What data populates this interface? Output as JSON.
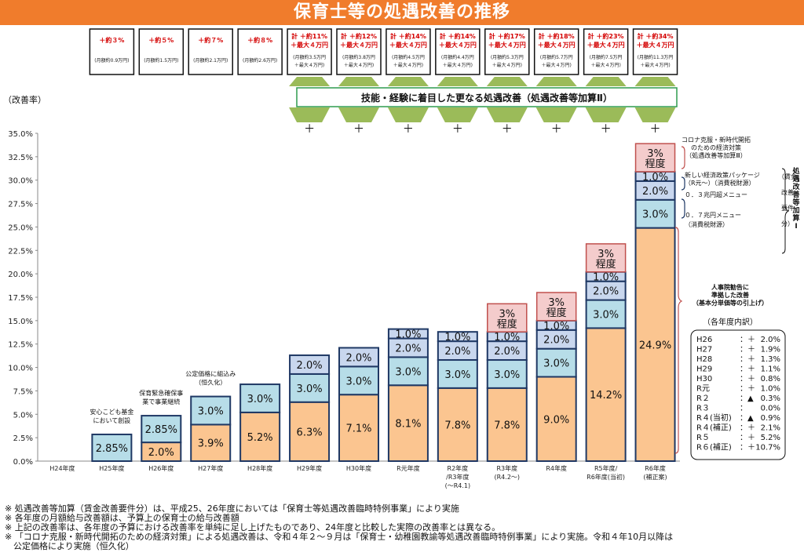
{
  "title": "保育士等の処遇改善の推移",
  "y_axis_title": "（改善率）",
  "top_boxes": [
    {
      "main": "＋約３%",
      "sub": "(月額約0.9万円)"
    },
    {
      "main": "＋約５%",
      "sub": "(月額約1.5万円)"
    },
    {
      "main": "＋約７%",
      "sub": "(月額約2.1万円)"
    },
    {
      "main": "＋約８%",
      "sub": "(月額約2.6万円)"
    },
    {
      "main": "計 ＋約11%",
      "main2": "＋最大４万円",
      "sub": "(月額約3.5万円",
      "sub2": "＋最大４万円)"
    },
    {
      "main": "計 ＋約12%",
      "main2": "＋最大４万円",
      "sub": "(月額約3.8万円",
      "sub2": "＋最大４万円)"
    },
    {
      "main": "計 ＋約14%",
      "main2": "＋最大４万円",
      "sub": "(月額約4.5万円",
      "sub2": "＋最大４万円)"
    },
    {
      "main": "計 ＋約14%",
      "main2": "＋最大４万円",
      "sub": "(月額約4.4万円",
      "sub2": "＋最大４万円)"
    },
    {
      "main": "計 ＋約17%",
      "main2": "＋最大４万円",
      "sub": "(月額約5.3万円",
      "sub2": "＋最大４万円)"
    },
    {
      "main": "計 ＋約18%",
      "main2": "＋最大４万円",
      "sub": "(月額約5.7万円",
      "sub2": "＋最大４万円)"
    },
    {
      "main": "計 ＋約23%",
      "main2": "＋最大４万円",
      "sub": "(月額約7.5万円",
      "sub2": "＋最大４万円)"
    },
    {
      "main": "計 ＋約34%",
      "main2": "＋最大４万円",
      "sub": "(月額約11.3万円",
      "sub2": "＋最大４万円)"
    }
  ],
  "banner": "技能・経験に着目した更なる処遇改善（処遇改善等加算Ⅱ）",
  "plus_sign": "＋",
  "chart_data": {
    "type": "bar",
    "stacked": true,
    "categories": [
      "H24年度",
      "H25年度",
      "H26年度",
      "H27年度",
      "H28年度",
      "H29年度",
      "H30年度",
      "R元年度",
      "R2年度",
      "R3年度",
      "R4年度",
      "R5年度/",
      "R6年度"
    ],
    "category_sublabels": [
      "",
      "",
      "",
      "",
      "",
      "",
      "",
      "",
      "/R3年度",
      "(R4.2～)",
      "",
      "R6年度(当初)",
      "(補正案)"
    ],
    "category_sublabels2": [
      "",
      "",
      "",
      "",
      "",
      "",
      "",
      "",
      "(～R4.1)",
      "",
      "",
      "",
      ""
    ],
    "ylim": [
      0,
      35
    ],
    "y_ticks": [
      "0.0%",
      "2.5%",
      "5.0%",
      "7.5%",
      "10.0%",
      "12.5%",
      "15.0%",
      "17.5%",
      "20.0%",
      "22.5%",
      "25.0%",
      "27.5%",
      "30.0%",
      "32.5%",
      "35.0%"
    ],
    "colors": {
      "base": "#fbc590",
      "blue": "#b7dde8",
      "blue_light": "#c9d7ee",
      "pink": "#f4cccc",
      "pink_border": "#c0504d",
      "border": "#1f3864",
      "banner_border": "#2e9c4e",
      "trap": "#9bbb59"
    },
    "stacks": [
      [],
      [
        {
          "v": 2.85,
          "label": "2.85%",
          "kind": "blue"
        }
      ],
      [
        {
          "v": 2.0,
          "label": "2.0%",
          "kind": "base"
        },
        {
          "v": 2.85,
          "label": "2.85%",
          "kind": "blue"
        }
      ],
      [
        {
          "v": 3.9,
          "label": "3.9%",
          "kind": "base"
        },
        {
          "v": 3.0,
          "label": "3.0%",
          "kind": "blue"
        }
      ],
      [
        {
          "v": 5.2,
          "label": "5.2%",
          "kind": "base"
        },
        {
          "v": 3.0,
          "label": "3.0%",
          "kind": "blue"
        }
      ],
      [
        {
          "v": 6.3,
          "label": "6.3%",
          "kind": "base"
        },
        {
          "v": 3.0,
          "label": "3.0%",
          "kind": "blue"
        },
        {
          "v": 2.0,
          "label": "2.0%",
          "kind": "blue_light"
        }
      ],
      [
        {
          "v": 7.1,
          "label": "7.1%",
          "kind": "base"
        },
        {
          "v": 3.0,
          "label": "3.0%",
          "kind": "blue"
        },
        {
          "v": 2.0,
          "label": "2.0%",
          "kind": "blue_light"
        }
      ],
      [
        {
          "v": 8.1,
          "label": "8.1%",
          "kind": "base"
        },
        {
          "v": 3.0,
          "label": "3.0%",
          "kind": "blue"
        },
        {
          "v": 2.0,
          "label": "2.0%",
          "kind": "blue_light"
        },
        {
          "v": 1.0,
          "label": "1.0%",
          "kind": "blue_light"
        }
      ],
      [
        {
          "v": 7.8,
          "label": "7.8%",
          "kind": "base"
        },
        {
          "v": 3.0,
          "label": "3.0%",
          "kind": "blue"
        },
        {
          "v": 2.0,
          "label": "2.0%",
          "kind": "blue_light"
        },
        {
          "v": 1.0,
          "label": "1.0%",
          "kind": "blue_light"
        }
      ],
      [
        {
          "v": 7.8,
          "label": "7.8%",
          "kind": "base"
        },
        {
          "v": 3.0,
          "label": "3.0%",
          "kind": "blue"
        },
        {
          "v": 2.0,
          "label": "2.0%",
          "kind": "blue_light"
        },
        {
          "v": 1.0,
          "label": "1.0%",
          "kind": "blue_light"
        },
        {
          "v": 3.0,
          "label": "3%",
          "label2": "程度",
          "kind": "pink"
        }
      ],
      [
        {
          "v": 9.0,
          "label": "9.0%",
          "kind": "base"
        },
        {
          "v": 3.0,
          "label": "3.0%",
          "kind": "blue"
        },
        {
          "v": 2.0,
          "label": "2.0%",
          "kind": "blue_light"
        },
        {
          "v": 1.0,
          "label": "1.0%",
          "kind": "blue_light"
        },
        {
          "v": 3.0,
          "label": "3%",
          "label2": "程度",
          "kind": "pink"
        }
      ],
      [
        {
          "v": 14.2,
          "label": "14.2%",
          "kind": "base"
        },
        {
          "v": 3.0,
          "label": "3.0%",
          "kind": "blue"
        },
        {
          "v": 2.0,
          "label": "2.0%",
          "kind": "blue_light"
        },
        {
          "v": 1.0,
          "label": "1.0%",
          "kind": "blue_light"
        },
        {
          "v": 3.0,
          "label": "3%",
          "label2": "程度",
          "kind": "pink"
        }
      ],
      [
        {
          "v": 24.9,
          "label": "24.9%",
          "kind": "base"
        },
        {
          "v": 3.0,
          "label": "3.0%",
          "kind": "blue"
        },
        {
          "v": 2.0,
          "label": "2.0%",
          "kind": "blue_light"
        },
        {
          "v": 1.0,
          "label": "1.0%",
          "kind": "blue_light"
        },
        {
          "v": 3.0,
          "label": "3%",
          "label2": "程度",
          "kind": "pink"
        }
      ]
    ]
  },
  "bar_annotations": [
    {
      "bar": 1,
      "lines": [
        "安心こども基金",
        "において創設"
      ]
    },
    {
      "bar": 2,
      "lines": [
        "保育緊急確保事",
        "業で事業継続"
      ]
    },
    {
      "bar": 3,
      "lines": [
        "公定価格に組込み",
        "（恒久化）"
      ]
    }
  ],
  "right_annotations": {
    "covid": [
      "コロナ克服・新時代開拓",
      "のための経済対策",
      "（処遇改善等加算Ⅲ）"
    ],
    "new_pkg": [
      "新しい経済政策パッケージ",
      "（R元～）（消費税財源）"
    ],
    "m03": "０．３兆円超メニュー",
    "m07": [
      "０．７兆円メニュー",
      "（消費税財源）"
    ],
    "vertical": [
      "処遇",
      "改善",
      "等加",
      "算Ⅰ"
    ],
    "vertical_sub": [
      "（賃金",
      "改善",
      "要件",
      "分）"
    ],
    "jinji": [
      "人事院勧告に",
      "準拠した改善",
      "（基本分単価等の引上げ）"
    ],
    "breakdown_title": "（各年度内訳）",
    "breakdown": [
      {
        "year": "H26",
        "sign": "：＋",
        "val": "2.0%"
      },
      {
        "year": "H27",
        "sign": "：＋",
        "val": "1.9%"
      },
      {
        "year": "H28",
        "sign": "：＋",
        "val": "1.3%"
      },
      {
        "year": "H29",
        "sign": "：＋",
        "val": "1.1%"
      },
      {
        "year": "H30",
        "sign": "：＋",
        "val": "0.8%"
      },
      {
        "year": "R元",
        "sign": "：＋",
        "val": "1.0%"
      },
      {
        "year": "R２",
        "sign": "：▲",
        "val": "0.3%"
      },
      {
        "year": "R３",
        "sign": "：",
        "val": "0.0%"
      },
      {
        "year": "R４(当初)",
        "sign": "：▲",
        "val": "0.9%"
      },
      {
        "year": "R４(補正)",
        "sign": "：＋",
        "val": "2.1%"
      },
      {
        "year": "R５",
        "sign": "：＋",
        "val": "5.2%"
      },
      {
        "year": "R６(補正)",
        "sign": "：＋",
        "val": "10.7%"
      }
    ]
  },
  "footnotes": [
    "※ 処遇改善等加算（賃金改善要件分）は、平成25、26年度においては「保育士等処遇改善臨時特例事業」により実施",
    "※ 各年度の月額給与改善額は、予算上の保育士の給与改善額",
    "※ 上記の改善率は、各年度の予算における改善率を単純に足し上げたものであり、24年度と比較した実際の改善率とは異なる。",
    "※ 「コロナ克服・新時代開拓のための経済対策」による処遇改善は、令和４年２～９月は「保育士・幼稚園教諭等処遇改善臨時特例事業」により実施。令和４年10月以降は",
    "　公定価格により実施（恒久化）"
  ]
}
